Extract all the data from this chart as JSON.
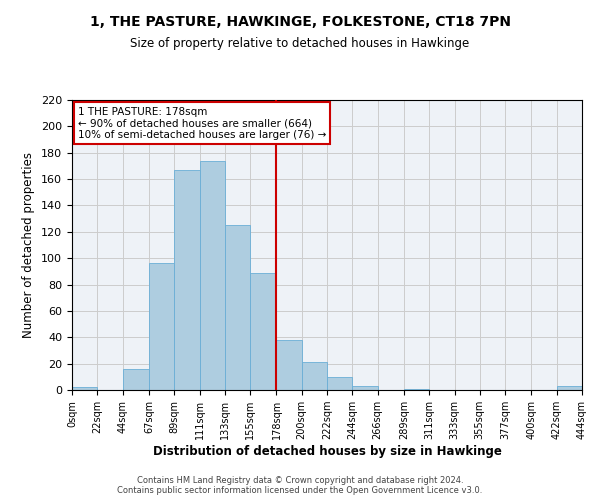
{
  "title": "1, THE PASTURE, HAWKINGE, FOLKESTONE, CT18 7PN",
  "subtitle": "Size of property relative to detached houses in Hawkinge",
  "xlabel": "Distribution of detached houses by size in Hawkinge",
  "ylabel": "Number of detached properties",
  "bar_left_edges": [
    0,
    22,
    44,
    67,
    89,
    111,
    133,
    155,
    178,
    200,
    222,
    244,
    266,
    289,
    311,
    333,
    355,
    377,
    400,
    422
  ],
  "bar_heights": [
    2,
    0,
    16,
    96,
    167,
    174,
    125,
    89,
    38,
    21,
    10,
    3,
    0,
    1,
    0,
    0,
    0,
    0,
    0,
    3
  ],
  "bar_widths": [
    22,
    22,
    23,
    22,
    22,
    22,
    22,
    23,
    22,
    22,
    22,
    22,
    23,
    22,
    22,
    22,
    22,
    23,
    22,
    22
  ],
  "bar_color": "#aecde0",
  "bar_edge_color": "#6aaed6",
  "property_line_x": 178,
  "property_line_color": "#cc0000",
  "annotation_text": "1 THE PASTURE: 178sqm\n← 90% of detached houses are smaller (664)\n10% of semi-detached houses are larger (76) →",
  "annotation_box_color": "#cc0000",
  "annotation_bg": "#ffffff",
  "xlim": [
    0,
    444
  ],
  "ylim": [
    0,
    220
  ],
  "xtick_positions": [
    0,
    22,
    44,
    67,
    89,
    111,
    133,
    155,
    178,
    200,
    222,
    244,
    266,
    289,
    311,
    333,
    355,
    377,
    400,
    422,
    444
  ],
  "xtick_labels": [
    "0sqm",
    "22sqm",
    "44sqm",
    "67sqm",
    "89sqm",
    "111sqm",
    "133sqm",
    "155sqm",
    "178sqm",
    "200sqm",
    "222sqm",
    "244sqm",
    "266sqm",
    "289sqm",
    "311sqm",
    "333sqm",
    "355sqm",
    "377sqm",
    "400sqm",
    "422sqm",
    "444sqm"
  ],
  "ytick_positions": [
    0,
    20,
    40,
    60,
    80,
    100,
    120,
    140,
    160,
    180,
    200,
    220
  ],
  "grid_color": "#cccccc",
  "bg_color": "#eef2f7",
  "footer_line1": "Contains HM Land Registry data © Crown copyright and database right 2024.",
  "footer_line2": "Contains public sector information licensed under the Open Government Licence v3.0."
}
